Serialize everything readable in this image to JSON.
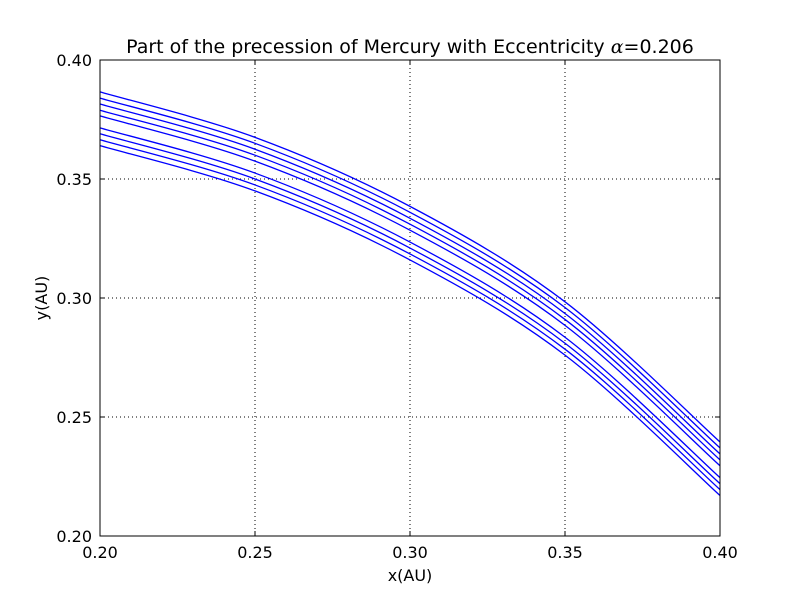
{
  "chart_data": {
    "type": "line",
    "title_prefix": "Part of the precession of Mercury with Eccentricity ",
    "title_symbol": "α",
    "title_suffix": "=0.206",
    "xlabel": "x(AU)",
    "ylabel": "y(AU)",
    "xlim": [
      0.2,
      0.4
    ],
    "ylim": [
      0.2,
      0.4
    ],
    "xticks": [
      "0.20",
      "0.25",
      "0.30",
      "0.35",
      "0.40"
    ],
    "yticks": [
      "0.20",
      "0.25",
      "0.30",
      "0.35",
      "0.40"
    ],
    "grid": true,
    "grid_style": "dotted",
    "line_color": "#0000ff",
    "series": [
      {
        "x": [
          0.2,
          0.25,
          0.3,
          0.35,
          0.4
        ],
        "y": [
          0.3866,
          0.3675,
          0.3385,
          0.2984,
          0.2395
        ]
      },
      {
        "x": [
          0.2,
          0.25,
          0.3,
          0.35,
          0.4
        ],
        "y": [
          0.384,
          0.365,
          0.336,
          0.296,
          0.237
        ]
      },
      {
        "x": [
          0.2,
          0.25,
          0.3,
          0.35,
          0.4
        ],
        "y": [
          0.3815,
          0.3625,
          0.3335,
          0.2935,
          0.2345
        ]
      },
      {
        "x": [
          0.2,
          0.25,
          0.3,
          0.35,
          0.4
        ],
        "y": [
          0.3789,
          0.36,
          0.331,
          0.291,
          0.232
        ]
      },
      {
        "x": [
          0.2,
          0.25,
          0.3,
          0.35,
          0.4
        ],
        "y": [
          0.3765,
          0.3575,
          0.3285,
          0.2885,
          0.2295
        ]
      },
      {
        "x": [
          0.2,
          0.25,
          0.3,
          0.35,
          0.4
        ],
        "y": [
          0.3715,
          0.3525,
          0.3235,
          0.2835,
          0.2245
        ]
      },
      {
        "x": [
          0.2,
          0.25,
          0.3,
          0.35,
          0.4
        ],
        "y": [
          0.369,
          0.35,
          0.321,
          0.281,
          0.222
        ]
      },
      {
        "x": [
          0.2,
          0.25,
          0.3,
          0.35,
          0.4
        ],
        "y": [
          0.3665,
          0.3475,
          0.3185,
          0.2785,
          0.2195
        ]
      },
      {
        "x": [
          0.2,
          0.25,
          0.3,
          0.35,
          0.4
        ],
        "y": [
          0.364,
          0.345,
          0.316,
          0.276,
          0.217
        ]
      }
    ]
  }
}
